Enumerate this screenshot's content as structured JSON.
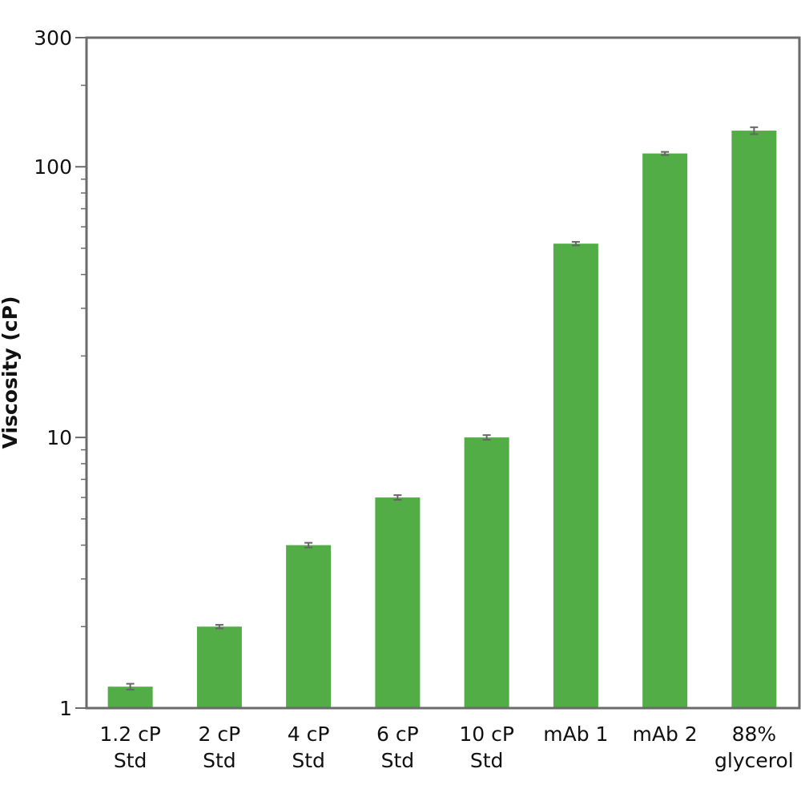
{
  "chart_data": {
    "type": "bar",
    "title": "",
    "xlabel": "",
    "ylabel": "Viscosity (cP)",
    "yscale": "log",
    "ylim": [
      1,
      300
    ],
    "y_tick_labels": [
      "1",
      "10",
      "100",
      "300"
    ],
    "y_tick_values": [
      1,
      10,
      100,
      300
    ],
    "grid": false,
    "legend": "none",
    "categories": [
      [
        "1.2 cP",
        "Std"
      ],
      [
        "2 cP",
        "Std"
      ],
      [
        "4 cP",
        "Std"
      ],
      [
        "6 cP",
        "Std"
      ],
      [
        "10 cP",
        "Std"
      ],
      [
        "mAb 1"
      ],
      [
        "mAb 2"
      ],
      [
        "88%",
        "glycerol"
      ]
    ],
    "values": [
      1.2,
      2.0,
      4.0,
      6.0,
      10.0,
      52,
      112,
      136
    ],
    "error_bars": [
      0.03,
      0.03,
      0.08,
      0.12,
      0.2,
      0.8,
      1.5,
      4
    ],
    "colors": {
      "bar": "#52ad47",
      "error_bar": "#666666",
      "axis": "#6b6b6b",
      "text": "#111111"
    }
  }
}
